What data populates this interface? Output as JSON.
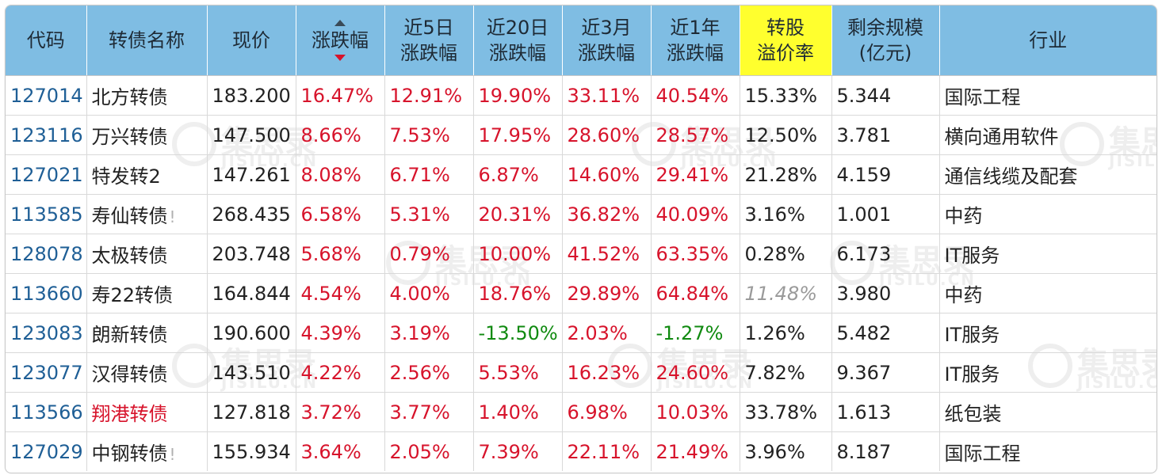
{
  "colors": {
    "header_bg": "#7fbde3",
    "header_highlight_bg": "#ffff2e",
    "code_link": "#1f5f96",
    "up_red": "#d7132b",
    "down_green": "#108a10",
    "muted_gray": "#9a9a9a"
  },
  "watermark": {
    "text": "集思录",
    "latin": "JISILU.CN"
  },
  "headers": {
    "code": "代码",
    "name": "转债名称",
    "price": "现价",
    "change": "涨跌幅",
    "d5_l1": "近5日",
    "d5_l2": "涨跌幅",
    "d20_l1": "近20日",
    "d20_l2": "涨跌幅",
    "m3_l1": "近3月",
    "m3_l2": "涨跌幅",
    "y1_l1": "近1年",
    "y1_l2": "涨跌幅",
    "prem_l1": "转股",
    "prem_l2": "溢价率",
    "size_l1": "剩余规模",
    "size_l2": "(亿元)",
    "industry": "行业"
  },
  "rows": [
    {
      "code": "127014",
      "name": "北方转债",
      "price": "183.200",
      "change": "16.47%",
      "d5": "12.91%",
      "d20": "19.90%",
      "m3": "33.11%",
      "y1": "40.54%",
      "prem": "15.33%",
      "size": "5.344",
      "industry": "国际工程"
    },
    {
      "code": "123116",
      "name": "万兴转债",
      "price": "147.500",
      "change": "8.66%",
      "d5": "7.53%",
      "d20": "17.95%",
      "m3": "28.60%",
      "y1": "28.57%",
      "prem": "12.50%",
      "size": "3.781",
      "industry": "横向通用软件"
    },
    {
      "code": "127021",
      "name": "特发转2",
      "price": "147.261",
      "change": "8.08%",
      "d5": "6.71%",
      "d20": "6.87%",
      "m3": "14.60%",
      "y1": "29.41%",
      "prem": "21.28%",
      "size": "4.159",
      "industry": "通信线缆及配套"
    },
    {
      "code": "113585",
      "name": "寿仙转债",
      "bang": "!",
      "price": "268.435",
      "change": "6.58%",
      "d5": "5.31%",
      "d20": "20.31%",
      "m3": "36.82%",
      "y1": "40.09%",
      "prem": "3.16%",
      "size": "1.001",
      "industry": "中药"
    },
    {
      "code": "128078",
      "name": "太极转债",
      "price": "203.748",
      "change": "5.68%",
      "d5": "0.79%",
      "d20": "10.00%",
      "m3": "41.52%",
      "y1": "63.35%",
      "prem": "0.28%",
      "size": "6.173",
      "industry": "IT服务"
    },
    {
      "code": "113660",
      "name": "寿22转债",
      "price": "164.844",
      "change": "4.54%",
      "d5": "4.00%",
      "d20": "18.76%",
      "m3": "29.89%",
      "y1": "64.84%",
      "prem": "11.48%",
      "size": "3.980",
      "industry": "中药"
    },
    {
      "code": "123083",
      "name": "朗新转债",
      "price": "190.600",
      "change": "4.39%",
      "d5": "3.19%",
      "d20": "-13.50%",
      "m3": "2.03%",
      "y1": "-1.27%",
      "prem": "1.26%",
      "size": "5.482",
      "industry": "IT服务"
    },
    {
      "code": "123077",
      "name": "汉得转债",
      "price": "143.510",
      "change": "4.22%",
      "d5": "2.56%",
      "d20": "5.53%",
      "m3": "16.23%",
      "y1": "24.60%",
      "prem": "7.82%",
      "size": "9.367",
      "industry": "IT服务"
    },
    {
      "code": "113566",
      "name": "翔港转债",
      "price": "127.818",
      "change": "3.72%",
      "d5": "3.77%",
      "d20": "1.40%",
      "m3": "6.98%",
      "y1": "10.03%",
      "prem": "33.78%",
      "size": "1.613",
      "industry": "纸包装"
    },
    {
      "code": "127029",
      "name": "中钢转债",
      "bang": "!",
      "price": "155.934",
      "change": "3.64%",
      "d5": "2.05%",
      "d20": "7.39%",
      "m3": "22.11%",
      "y1": "21.49%",
      "prem": "3.96%",
      "size": "8.187",
      "industry": "国际工程"
    }
  ]
}
